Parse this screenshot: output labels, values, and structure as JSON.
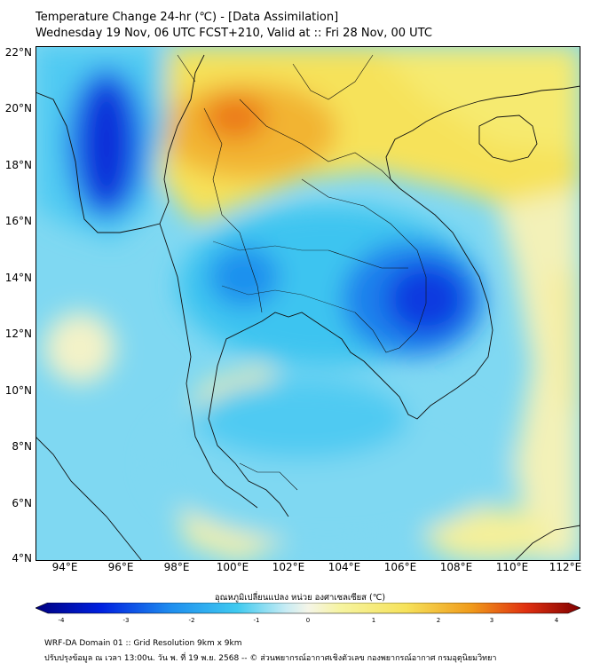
{
  "title_line1": "Temperature Change 24-hr (℃) - [Data Assimilation]",
  "title_line2": "Wednesday 19 Nov, 06 UTC FCST+210, Valid at :: Fri 28 Nov, 00 UTC",
  "lat_labels": [
    "22°N",
    "20°N",
    "18°N",
    "16°N",
    "14°N",
    "12°N",
    "10°N",
    "8°N",
    "6°N",
    "4°N"
  ],
  "lon_labels": [
    "94°E",
    "96°E",
    "98°E",
    "100°E",
    "102°E",
    "104°E",
    "106°E",
    "108°E",
    "110°E",
    "112°E"
  ],
  "colorbar_title": "อุณหภูมิเปลี่ยนแปลง หน่วย องศาเซลเซียส (℃)",
  "colorbar_ticks": [
    "-4",
    "-3",
    "-2",
    "-1",
    "0",
    "1",
    "2",
    "3",
    "4"
  ],
  "footer_line1": "WRF-DA Domain 01 :: Grid Resolution 9km x 9km",
  "footer_line2": "ปรับปรุงข้อมูล ณ เวลา 13:00น. วัน พ. ที่ 19 พ.ย. 2568 -- © ส่วนพยากรณ์อากาศเชิงตัวเลข กองพยากรณ์อากาศ กรมอุตุนิยมวิทยา",
  "colors": {
    "cold_extreme": "#000080",
    "cold_strong": "#0a3ae0",
    "cold": "#1f8fef",
    "cool": "#3fcaf0",
    "cool_light": "#8fe0f3",
    "neutral": "#f5f5dc",
    "warm_light": "#f6f4a0",
    "warm": "#f6e25a",
    "hot": "#f09a1a",
    "very_hot": "#e85a0a",
    "hot_extreme": "#800000"
  }
}
